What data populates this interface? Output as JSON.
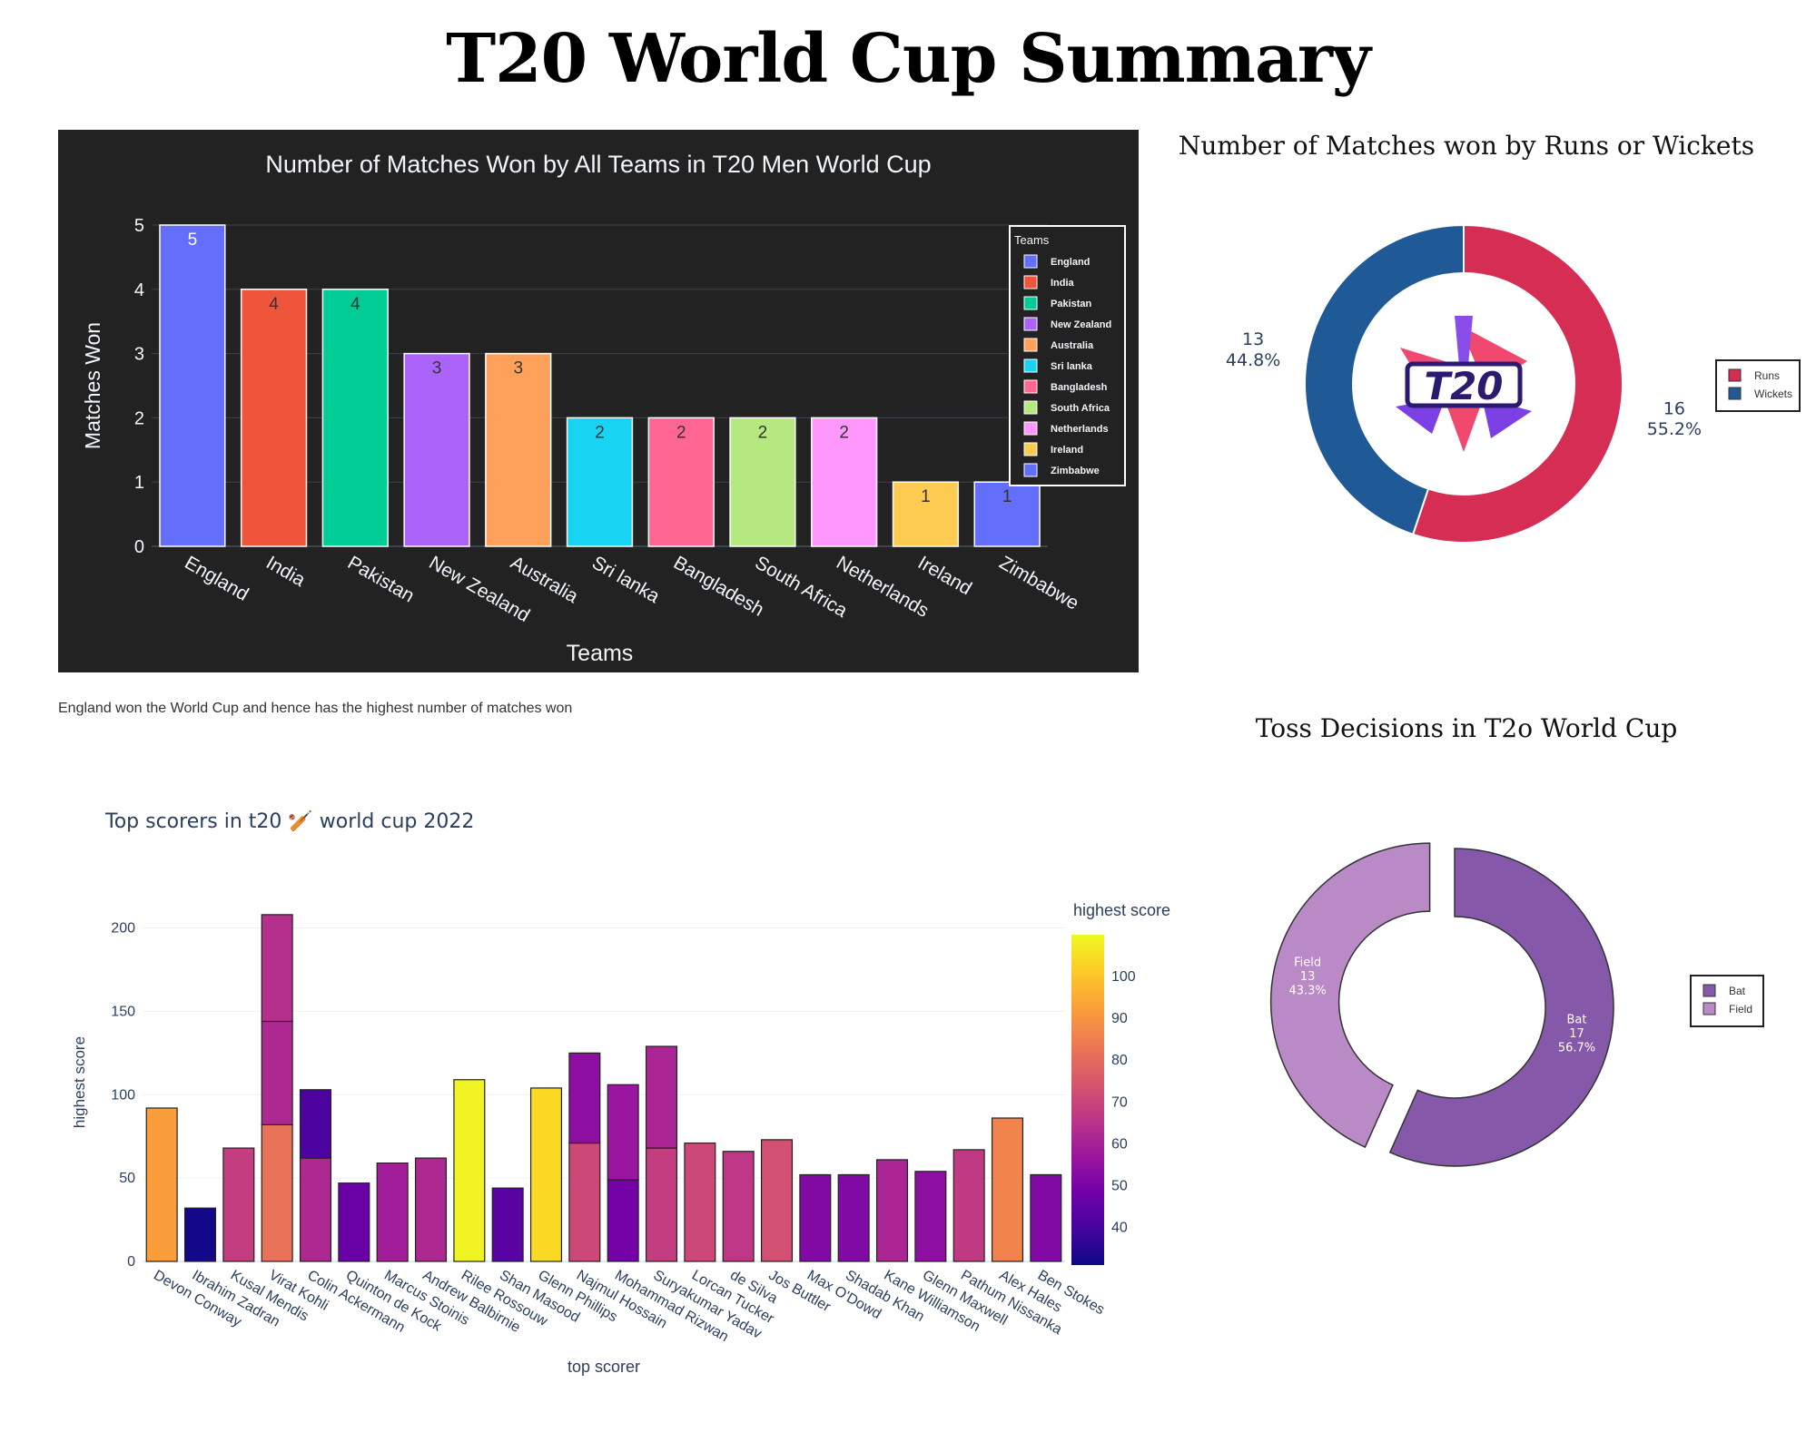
{
  "page_title": "T20 World Cup Summary",
  "caption": "England won the World Cup and hence has the highest number of matches won",
  "chart_data": [
    {
      "type": "bar",
      "title": "Number of Matches Won by All Teams in T20 Men World Cup",
      "xlabel": "Teams",
      "ylabel": "Matches Won",
      "ylim": [
        0,
        5
      ],
      "yticks": [
        "0",
        "1",
        "2",
        "3",
        "4",
        "5"
      ],
      "legend_title": "Teams",
      "legend_position": "top-right",
      "categories": [
        "England",
        "India",
        "Pakistan",
        "New Zealand",
        "Australia",
        "Sri lanka",
        "Bangladesh",
        "South Africa",
        "Netherlands",
        "Ireland",
        "Zimbabwe"
      ],
      "values": [
        5,
        4,
        4,
        3,
        3,
        2,
        2,
        2,
        2,
        1,
        1
      ],
      "colors": [
        "#636efa",
        "#EF553B",
        "#00cc96",
        "#ab63fa",
        "#FFA15A",
        "#19d3f3",
        "#FF6692",
        "#B6E880",
        "#FF97FF",
        "#FECB52",
        "#636efa"
      ],
      "background": "#222222"
    },
    {
      "type": "pie",
      "title": "Number of Matches won by Runs or Wickets",
      "hole": true,
      "center_logo": "t20-logo",
      "legend_position": "right",
      "labels": [
        "Runs",
        "Wickets"
      ],
      "values": [
        16,
        13
      ],
      "percents": [
        "55.2%",
        "44.8%"
      ],
      "colors": [
        "#d62d55",
        "#1f5a96"
      ]
    },
    {
      "type": "pie",
      "title": "Toss Decisions in T2o World Cup",
      "hole": true,
      "legend_position": "right",
      "labels": [
        "Bat",
        "Field"
      ],
      "values": [
        17,
        13
      ],
      "percents": [
        "56.7%",
        "43.3%"
      ],
      "colors": [
        "#8558a9",
        "#b98ac5"
      ]
    },
    {
      "type": "bar",
      "title": "Top scorers in t20 🏏 world cup 2022",
      "xlabel": "top scorer",
      "ylabel": "highest score",
      "ylim": [
        0,
        215
      ],
      "yticks": [
        "0",
        "50",
        "100",
        "150",
        "200"
      ],
      "colorscale": "Plasma",
      "colorbar_title": "highest score",
      "colorbar_range": [
        31,
        110
      ],
      "colorbar_ticks": [
        "40",
        "50",
        "60",
        "70",
        "80",
        "90",
        "100"
      ],
      "categories": [
        "Devon Conway",
        "Ibrahim Zadran",
        "Kusal Mendis",
        "Virat Kohli",
        "Colin Ackermann",
        "Quinton de Kock",
        "Marcus Stoinis",
        "Andrew Balbirnie",
        "Rilee Rossouw",
        "Shan Masood",
        "Glenn Phillips",
        "Najmul Hossain",
        "Mohammad Rizwan",
        "Suryakumar Yadav",
        "Lorcan Tucker",
        "de Silva",
        "Jos Buttler",
        "Max O'Dowd",
        "Shadab Khan",
        "Kane Williamson",
        "Glenn Maxwell",
        "Pathum Nissanka",
        "Alex Hales",
        "Ben Stokes"
      ],
      "series": [
        {
          "values": [
            92,
            32,
            68,
            82,
            62,
            47,
            59,
            62,
            109,
            44,
            104,
            71,
            49,
            68,
            71,
            66,
            73,
            52,
            52,
            61,
            54,
            67,
            86,
            52
          ]
        },
        {
          "values": [
            null,
            null,
            null,
            62,
            41,
            null,
            null,
            null,
            null,
            null,
            null,
            54,
            57,
            61,
            null,
            null,
            null,
            null,
            null,
            null,
            null,
            null,
            null,
            null
          ]
        },
        {
          "values": [
            null,
            null,
            null,
            64,
            null,
            null,
            null,
            null,
            null,
            null,
            null,
            null,
            null,
            null,
            null,
            null,
            null,
            null,
            null,
            null,
            null,
            null,
            null,
            null
          ]
        }
      ]
    }
  ]
}
